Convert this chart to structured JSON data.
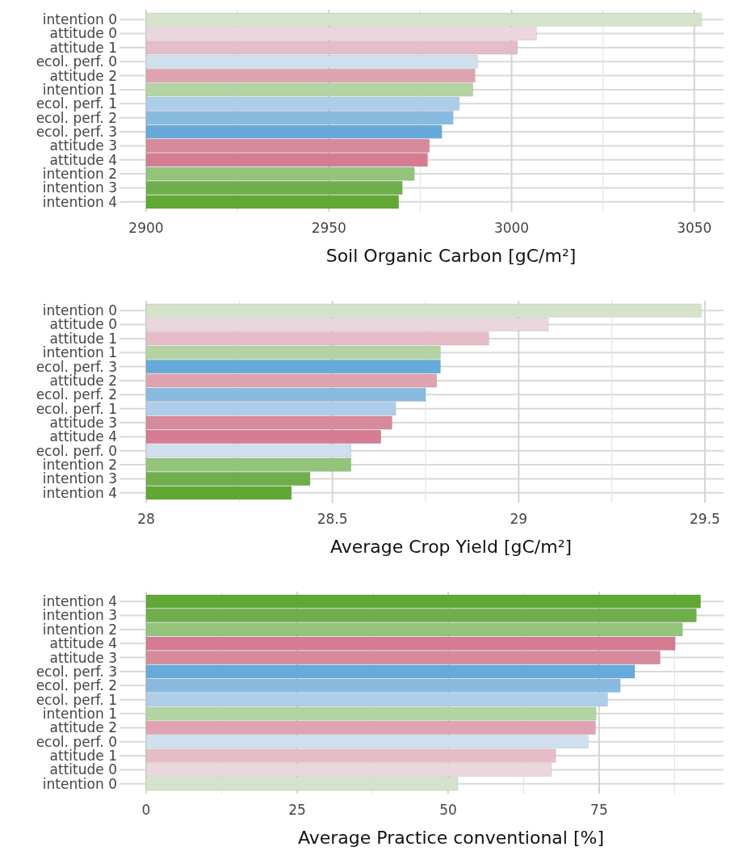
{
  "chart_data": [
    {
      "type": "bar",
      "orientation": "horizontal",
      "xlabel": "Soil Organic Carbon [gC/m²]",
      "grid": true,
      "categories": [
        "intention 0",
        "attitude 0",
        "attitude 1",
        "ecol. perf. 0",
        "attitude 2",
        "intention 1",
        "ecol. perf. 1",
        "ecol. perf. 2",
        "ecol. perf. 3",
        "attitude 3",
        "attitude 4",
        "intention 2",
        "intention 3",
        "intention 4"
      ],
      "values": [
        3052.0,
        3006.8,
        3001.6,
        2990.7,
        2990.0,
        2989.4,
        2985.7,
        2984.0,
        2980.9,
        2977.5,
        2977.0,
        2973.4,
        2970.1,
        2969.1
      ],
      "colors": [
        "#d4e3c9",
        "#ead7dd",
        "#e6bcc6",
        "#cfdfee",
        "#dfa3b1",
        "#b3d4a2",
        "#acceea",
        "#89bbe0",
        "#66aadb",
        "#d78a9c",
        "#d57b92",
        "#93c47a",
        "#6faf4b",
        "#60a934"
      ],
      "xlim": [
        2900,
        3058
      ],
      "xticks": [
        2900,
        {
          "value": 2925,
          "label": null
        },
        2950,
        {
          "value": 2975,
          "label": null
        },
        3000,
        {
          "value": 3025,
          "label": null
        },
        3050
      ]
    },
    {
      "type": "bar",
      "orientation": "horizontal",
      "xlabel": "Average Crop Yield [gC/m²]",
      "grid": true,
      "categories": [
        "intention 0",
        "attitude 0",
        "attitude 1",
        "intention 1",
        "ecol. perf. 3",
        "attitude 2",
        "ecol. perf. 2",
        "ecol. perf. 1",
        "attitude 3",
        "attitude 4",
        "ecol. perf. 0",
        "intention 2",
        "intention 3",
        "intention 4"
      ],
      "values": [
        29.49,
        29.08,
        28.92,
        28.79,
        28.79,
        28.78,
        28.75,
        28.67,
        28.66,
        28.63,
        28.55,
        28.55,
        28.44,
        28.39
      ],
      "colors": [
        "#d4e3c9",
        "#ead7dd",
        "#e6bcc6",
        "#b3d4a2",
        "#66aadb",
        "#dfa3b1",
        "#89bbe0",
        "#acceea",
        "#d78a9c",
        "#d57b92",
        "#cfdfee",
        "#93c47a",
        "#6faf4b",
        "#60a934"
      ],
      "xlim": [
        28,
        29.55
      ],
      "xticks": [
        28,
        {
          "value": 28.25,
          "label": null
        },
        28.5,
        {
          "value": 28.75,
          "label": null
        },
        29,
        {
          "value": 29.25,
          "label": null
        },
        29.5
      ]
    },
    {
      "type": "bar",
      "orientation": "horizontal",
      "xlabel": "Average Practice conventional [%]",
      "grid": true,
      "categories": [
        "intention 4",
        "intention 3",
        "intention 2",
        "attitude 4",
        "attitude 3",
        "ecol. perf. 3",
        "ecol. perf. 2",
        "ecol. perf. 1",
        "intention 1",
        "attitude 2",
        "ecol. perf. 0",
        "attitude 1",
        "attitude 0",
        "intention 0"
      ],
      "values": [
        91.8,
        91.1,
        88.8,
        87.6,
        85.1,
        80.9,
        78.5,
        76.4,
        74.5,
        74.4,
        73.2,
        67.8,
        67.1,
        51.6
      ],
      "colors": [
        "#60a934",
        "#6faf4b",
        "#93c47a",
        "#d57b92",
        "#d78a9c",
        "#66aadb",
        "#89bbe0",
        "#acceea",
        "#b3d4a2",
        "#dfa3b1",
        "#cfdfee",
        "#e6bcc6",
        "#ead7dd",
        "#d4e3c9"
      ],
      "xlim": [
        0,
        95.6
      ],
      "xticks": [
        0,
        {
          "value": 12.5,
          "label": null
        },
        25,
        {
          "value": 37.5,
          "label": null
        },
        50,
        {
          "value": 62.5,
          "label": null
        },
        75,
        {
          "value": 87.5,
          "label": null
        }
      ]
    }
  ]
}
